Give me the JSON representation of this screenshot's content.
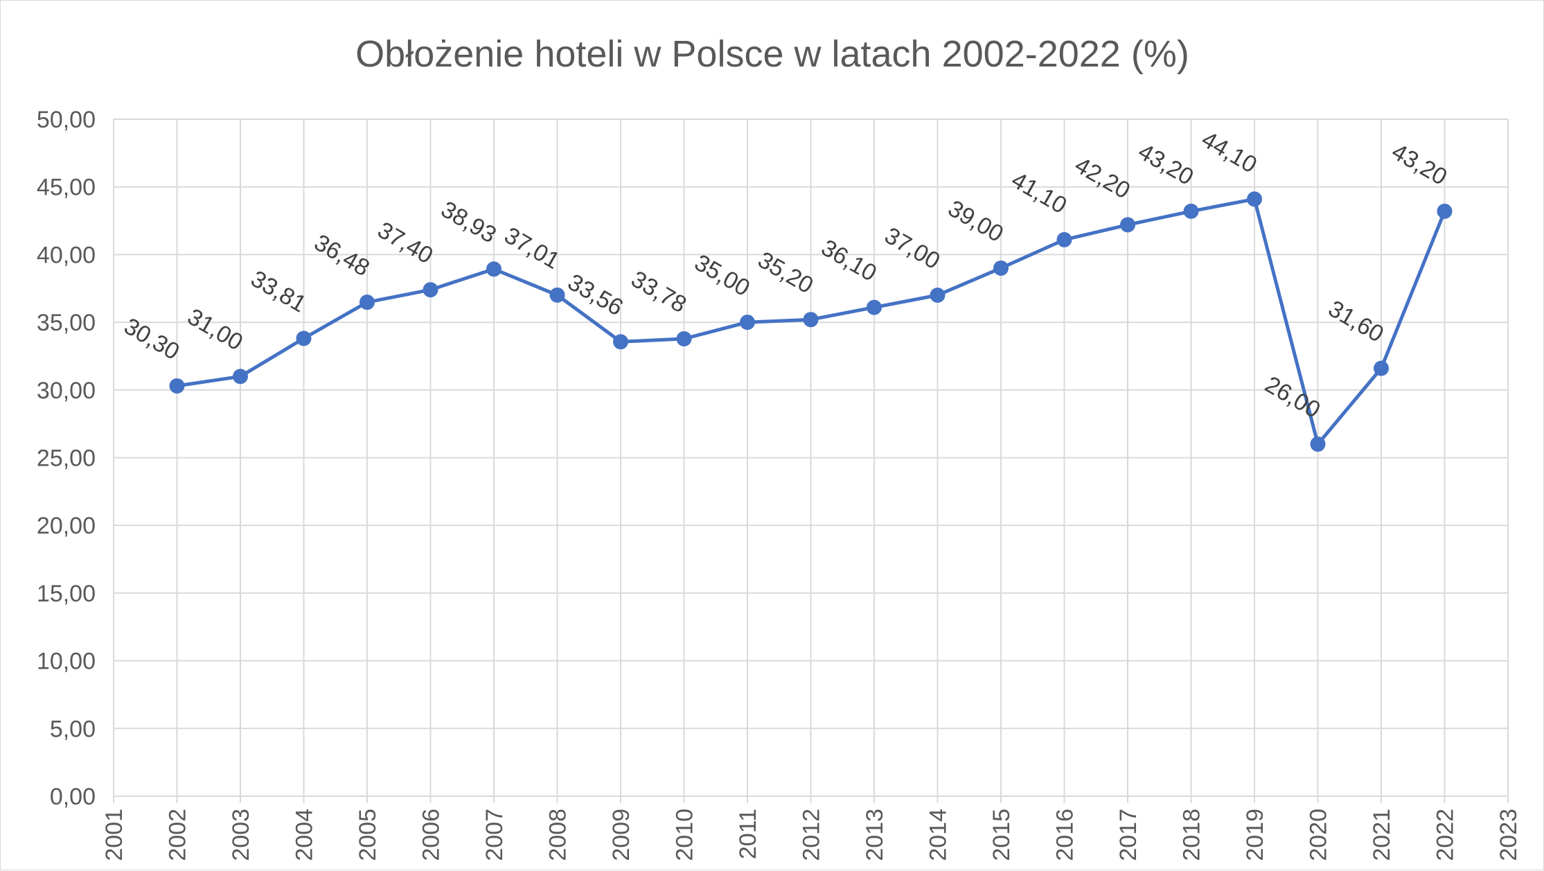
{
  "chart_data": {
    "type": "line",
    "title": "Obłożenie hoteli w Polsce w latach 2002-2022 (%)",
    "xlabel": "",
    "ylabel": "",
    "x": [
      2002,
      2003,
      2004,
      2005,
      2006,
      2007,
      2008,
      2009,
      2010,
      2011,
      2012,
      2013,
      2014,
      2015,
      2016,
      2017,
      2018,
      2019,
      2020,
      2021,
      2022
    ],
    "series": [
      {
        "values": [
          30.3,
          31.0,
          33.81,
          36.48,
          37.4,
          38.93,
          37.01,
          33.56,
          33.78,
          35.0,
          35.2,
          36.1,
          37.0,
          39.0,
          41.1,
          42.2,
          43.2,
          44.1,
          26.0,
          31.6,
          43.2
        ],
        "labels": [
          "30,30",
          "31,00",
          "33,81",
          "36,48",
          "37,40",
          "38,93",
          "37,01",
          "33,56",
          "33,78",
          "35,00",
          "35,20",
          "36,10",
          "37,00",
          "39,00",
          "41,10",
          "42,20",
          "43,20",
          "44,10",
          "26,00",
          "31,60",
          "43,20"
        ],
        "color": "#4472c4"
      }
    ],
    "xlim": [
      2001,
      2023
    ],
    "ylim": [
      0,
      50
    ],
    "x_ticks": [
      "2001",
      "2002",
      "2003",
      "2004",
      "2005",
      "2006",
      "2007",
      "2008",
      "2009",
      "2010",
      "2011",
      "2012",
      "2013",
      "2014",
      "2015",
      "2016",
      "2017",
      "2018",
      "2019",
      "2020",
      "2021",
      "2022",
      "2023"
    ],
    "y_ticks": [
      "0,00",
      "5,00",
      "10,00",
      "15,00",
      "20,00",
      "25,00",
      "30,00",
      "35,00",
      "40,00",
      "45,00",
      "50,00"
    ],
    "grid": true,
    "legend": "none",
    "colors": {
      "line": "#4472c4",
      "grid": "#d9d9d9",
      "text": "#595959"
    }
  }
}
